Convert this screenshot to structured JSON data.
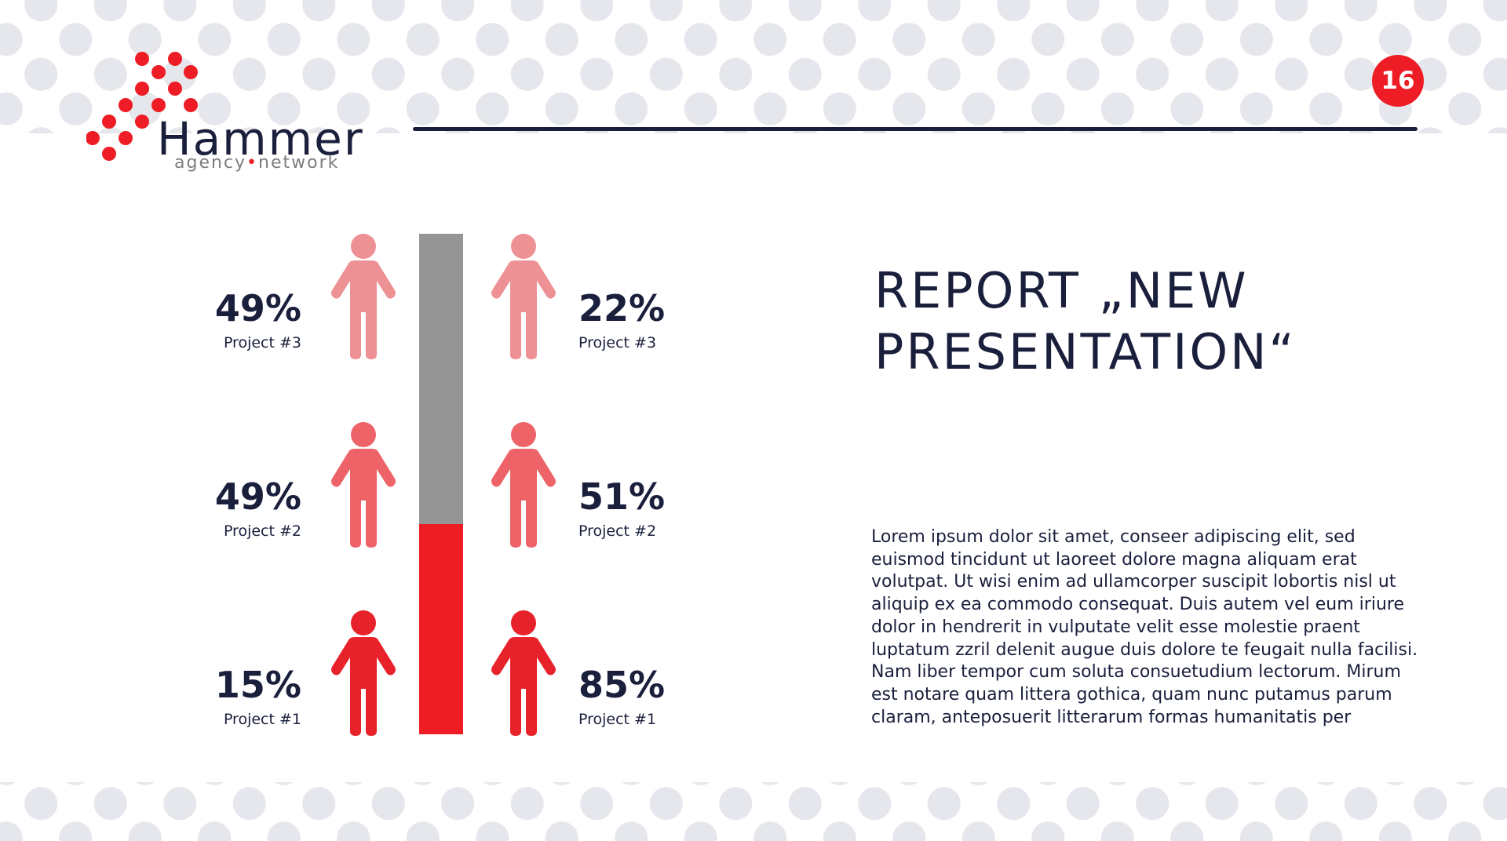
{
  "brand": {
    "word": "Hammer",
    "sub_left": "agency",
    "sub_sep": "•",
    "sub_right": "network",
    "accent_color": "#ee1c25",
    "navy_color": "#1a1f3c",
    "grey_color": "#959595"
  },
  "page_number": "16",
  "title": {
    "line1": "REPORT „NEW",
    "line2": "PRESENTATION“"
  },
  "body": "Lorem ipsum dolor sit amet, conseer adipiscing elit, sed euismod tincidunt ut laoreet dolore magna aliquam erat volutpat. Ut wisi enim ad ullamcorper suscipit lobortis nisl ut aliquip ex ea commodo consequat. Duis autem vel eum iriure dolor in hendrerit in vulputate velit esse molestie praent luptatum zzril delenit augue duis dolore te feugait nulla facilisi. Nam liber tempor cum soluta consuetudium lectorum. Mirum est notare quam littera gothica, quam nunc putamus parum claram, anteposuerit litterarum formas humanitatis per",
  "infographic": {
    "bar_fill_fraction": 0.42,
    "left": [
      {
        "value": "49%",
        "label": "Project #3",
        "icon": "person-icon",
        "color": "#ee9194"
      },
      {
        "value": "49%",
        "label": "Project #2",
        "icon": "person-icon",
        "color": "#ee6367"
      },
      {
        "value": "15%",
        "label": "Project #1",
        "icon": "person-icon",
        "color": "#e8222a"
      }
    ],
    "right": [
      {
        "value": "22%",
        "label": "Project #3",
        "icon": "person-icon",
        "color": "#ee9194"
      },
      {
        "value": "51%",
        "label": "Project #2",
        "icon": "person-icon",
        "color": "#ee6367"
      },
      {
        "value": "85%",
        "label": "Project #1",
        "icon": "person-icon",
        "color": "#e8222a"
      }
    ]
  }
}
